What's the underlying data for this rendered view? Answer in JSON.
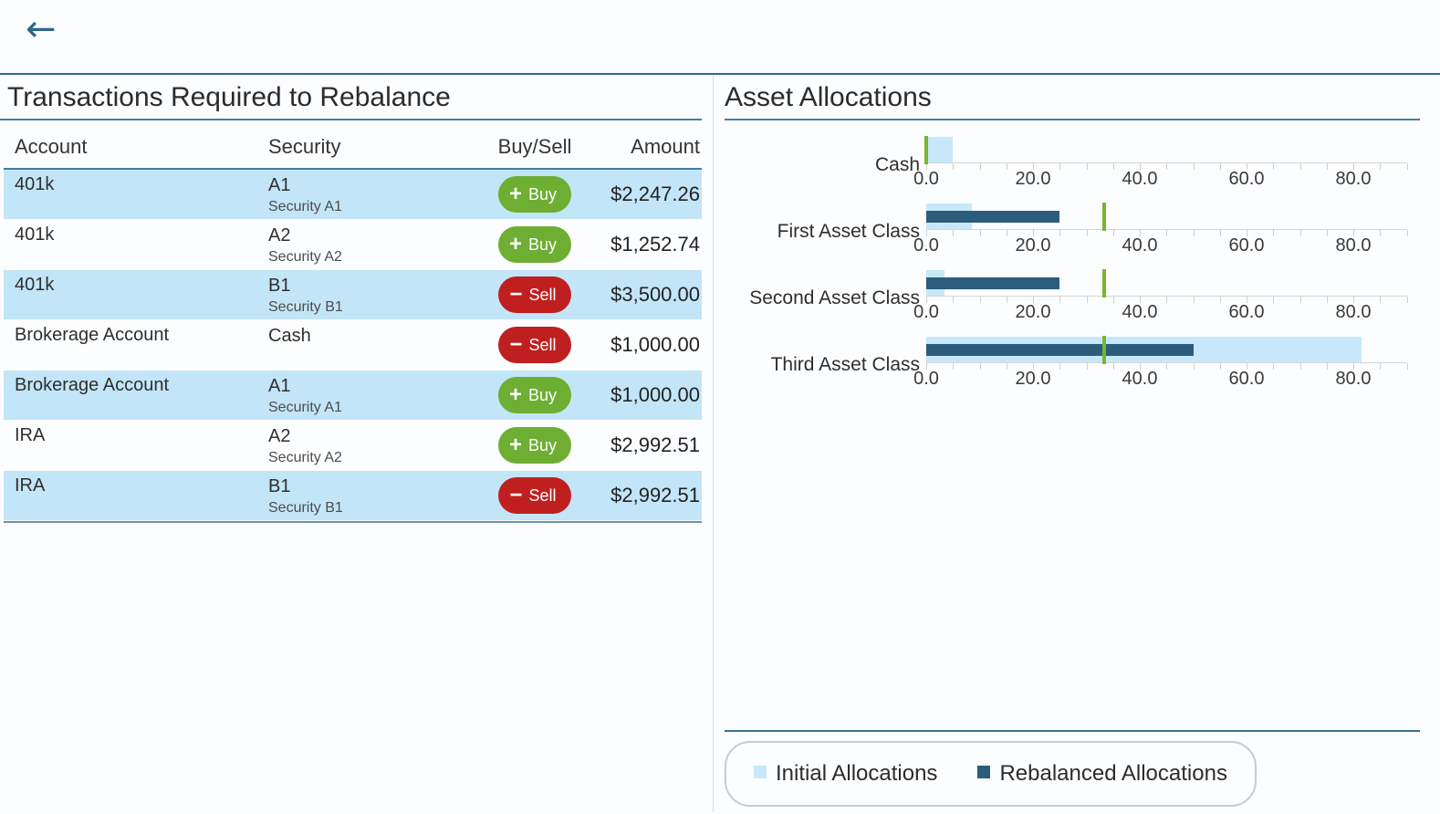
{
  "icons": {
    "back": "←",
    "buy": "+",
    "sell": "−"
  },
  "colors": {
    "accent_teal": "#2f6d8d",
    "row_highlight": "#c3e5f8",
    "buy_green": "#6dae33",
    "sell_red": "#c01f1f",
    "initial_blue": "#c7e8fa",
    "rebalanced_navy": "#2b5c7c",
    "target_green": "#76b72d"
  },
  "left_panel": {
    "title": "Transactions Required to Rebalance",
    "table": {
      "columns": [
        "Account",
        "Security",
        "Buy/Sell",
        "Amount"
      ],
      "rows": [
        {
          "account": "401k",
          "security": "A1",
          "security_name": "Security A1",
          "action": "Buy",
          "amount": "$2,247.26"
        },
        {
          "account": "401k",
          "security": "A2",
          "security_name": "Security A2",
          "action": "Buy",
          "amount": "$1,252.74"
        },
        {
          "account": "401k",
          "security": "B1",
          "security_name": "Security B1",
          "action": "Sell",
          "amount": "$3,500.00"
        },
        {
          "account": "Brokerage Account",
          "security": "Cash",
          "security_name": "",
          "action": "Sell",
          "amount": "$1,000.00"
        },
        {
          "account": "Brokerage Account",
          "security": "A1",
          "security_name": "Security A1",
          "action": "Buy",
          "amount": "$1,000.00"
        },
        {
          "account": "IRA",
          "security": "A2",
          "security_name": "Security A2",
          "action": "Buy",
          "amount": "$2,992.51"
        },
        {
          "account": "IRA",
          "security": "B1",
          "security_name": "Security B1",
          "action": "Sell",
          "amount": "$2,992.51"
        }
      ]
    }
  },
  "right_panel": {
    "title": "Asset Allocations",
    "legend": [
      {
        "label": "Initial Allocations",
        "color": "#c7e8fa"
      },
      {
        "label": "Rebalanced Allocations",
        "color": "#2b5c7c"
      }
    ]
  },
  "chart_data": {
    "type": "bar",
    "orientation": "horizontal",
    "title": "Asset Allocations",
    "categories": [
      "Cash",
      "First Asset Class",
      "Second Asset Class",
      "Third Asset Class"
    ],
    "series": [
      {
        "name": "Initial Allocations",
        "color": "#c7e8fa",
        "values": [
          5.0,
          8.5,
          3.5,
          81.5
        ]
      },
      {
        "name": "Rebalanced Allocations",
        "color": "#2b5c7c",
        "values": [
          0.0,
          25.0,
          25.0,
          50.0
        ]
      }
    ],
    "target_markers": {
      "color": "#76b72d",
      "values": [
        0.0,
        33.3,
        33.3,
        33.3
      ]
    },
    "x_ticks": [
      "0.0",
      "20.0",
      "40.0",
      "60.0",
      "80.0"
    ],
    "x_tick_values": [
      0,
      20,
      40,
      60,
      80
    ],
    "xlim": [
      0,
      90
    ],
    "minor_tick_step": 5,
    "grid": false,
    "legend_position": "bottom"
  }
}
